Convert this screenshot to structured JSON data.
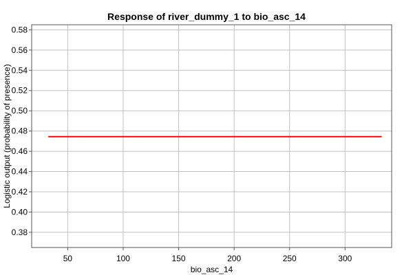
{
  "chart_data": {
    "type": "line",
    "title": "Response of river_dummy_1 to bio_asc_14",
    "xlabel": "bio_asc_14",
    "ylabel": "Logistic output (probability of presence)",
    "xlim": [
      17.5,
      342
    ],
    "ylim": [
      0.365,
      0.585
    ],
    "x_ticks": [
      50,
      100,
      150,
      200,
      250,
      300
    ],
    "x_tick_labels": [
      "50",
      "100",
      "150",
      "200",
      "250",
      "300"
    ],
    "y_ticks": [
      0.38,
      0.4,
      0.42,
      0.44,
      0.46,
      0.48,
      0.5,
      0.52,
      0.54,
      0.56,
      0.58
    ],
    "y_tick_labels": [
      "0.38",
      "0.40",
      "0.42",
      "0.44",
      "0.46",
      "0.48",
      "0.50",
      "0.52",
      "0.54",
      "0.56",
      "0.58"
    ],
    "grid": true,
    "legend": false,
    "series": [
      {
        "color": "#ff0000",
        "x": [
          32.5,
          333
        ],
        "y": [
          0.4745,
          0.4745
        ]
      }
    ]
  }
}
